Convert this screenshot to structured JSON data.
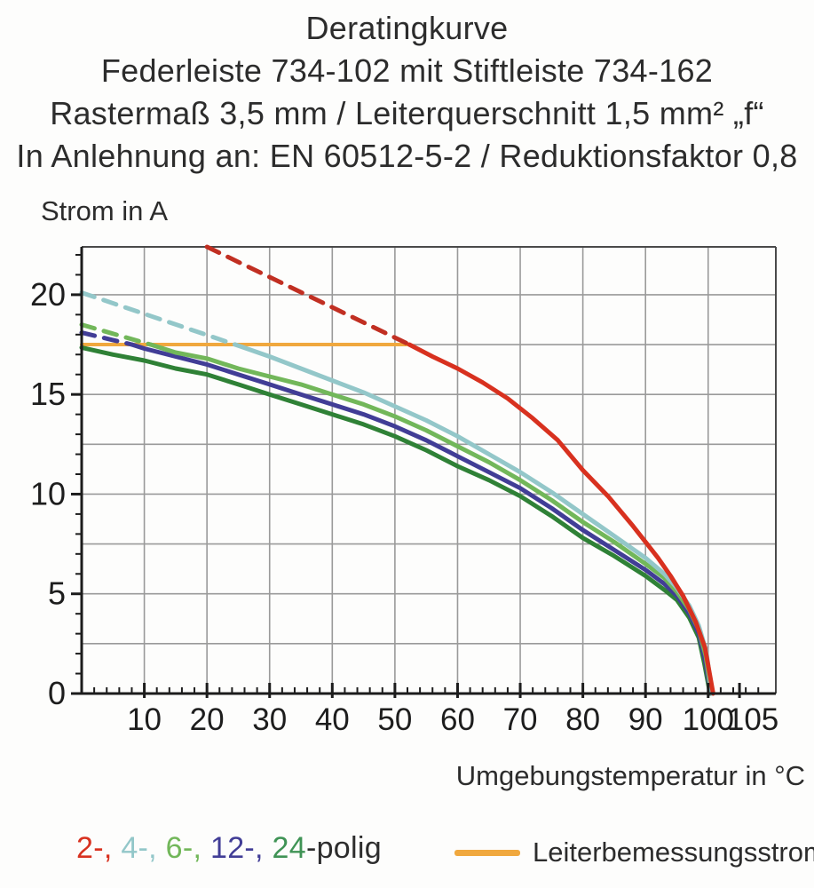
{
  "title": {
    "line1": "Deratingkurve",
    "line2": "Federleiste 734-102 mit Stiftleiste 734-162",
    "line3": "Rastermaß 3,5 mm / Leiterquerschnitt 1,5 mm² „f“",
    "line4": "In Anlehnung an: EN 60512-5-2 / Reduktionsfaktor 0,8"
  },
  "chart_data": {
    "type": "line",
    "title": "Deratingkurve",
    "xlabel": "Umgebungstemperatur in °C",
    "ylabel": "Strom in A",
    "xlim": [
      0,
      110.8
    ],
    "ylim": [
      0,
      22.4
    ],
    "x_major_ticks": [
      10,
      20,
      30,
      40,
      50,
      60,
      70,
      80,
      90,
      100,
      105
    ],
    "x_minor_step": 2,
    "y_major_ticks": [
      0,
      5,
      10,
      15,
      20
    ],
    "y_minor_step": 1,
    "grid": {
      "x_step": 10,
      "y_step": 2.5,
      "color": "#9a9a9a",
      "on": true
    },
    "axis_color": "#1c1c1c",
    "legend_position": "bottom",
    "series": [
      {
        "name": "Leiterbemessungsstrom",
        "color": "#f0a83e",
        "width": 4,
        "points": [
          [
            0,
            17.5
          ],
          [
            52.3,
            17.5
          ]
        ]
      },
      {
        "name": "24-polig",
        "color": "#2f8136",
        "width": 5,
        "points": [
          [
            0,
            17.35
          ],
          [
            5,
            17.0
          ],
          [
            10,
            16.7
          ],
          [
            15,
            16.3
          ],
          [
            20,
            16.0
          ],
          [
            25,
            15.5
          ],
          [
            30,
            15.0
          ],
          [
            35,
            14.5
          ],
          [
            40,
            14.0
          ],
          [
            45,
            13.5
          ],
          [
            50,
            12.9
          ],
          [
            55,
            12.2
          ],
          [
            60,
            11.4
          ],
          [
            65,
            10.7
          ],
          [
            70,
            9.9
          ],
          [
            75,
            8.9
          ],
          [
            80,
            7.8
          ],
          [
            85,
            6.9
          ],
          [
            90,
            5.9
          ],
          [
            93,
            5.2
          ],
          [
            95,
            4.7
          ],
          [
            97,
            3.8
          ],
          [
            98.5,
            2.8
          ],
          [
            99.4,
            1.5
          ],
          [
            100.3,
            0
          ]
        ]
      },
      {
        "name": "12-polig",
        "color": "#413d96",
        "width": 5,
        "dashed_points": [
          [
            0,
            18.1
          ],
          [
            8,
            17.5
          ]
        ],
        "points": [
          [
            8,
            17.5
          ],
          [
            10,
            17.3
          ],
          [
            15,
            16.9
          ],
          [
            20,
            16.5
          ],
          [
            25,
            16.0
          ],
          [
            30,
            15.5
          ],
          [
            35,
            15.0
          ],
          [
            40,
            14.5
          ],
          [
            45,
            14.0
          ],
          [
            50,
            13.4
          ],
          [
            55,
            12.7
          ],
          [
            60,
            11.9
          ],
          [
            65,
            11.1
          ],
          [
            70,
            10.3
          ],
          [
            75,
            9.3
          ],
          [
            80,
            8.2
          ],
          [
            85,
            7.2
          ],
          [
            90,
            6.2
          ],
          [
            93,
            5.5
          ],
          [
            95,
            4.9
          ],
          [
            97,
            4.0
          ],
          [
            98.5,
            3.0
          ],
          [
            99.5,
            1.7
          ],
          [
            100.4,
            0
          ]
        ]
      },
      {
        "name": "6-polig",
        "color": "#72b75a",
        "width": 5,
        "dashed_points": [
          [
            0,
            18.5
          ],
          [
            11,
            17.5
          ]
        ],
        "points": [
          [
            11,
            17.5
          ],
          [
            15,
            17.1
          ],
          [
            20,
            16.8
          ],
          [
            25,
            16.3
          ],
          [
            30,
            15.9
          ],
          [
            35,
            15.5
          ],
          [
            40,
            15.0
          ],
          [
            45,
            14.5
          ],
          [
            50,
            13.9
          ],
          [
            55,
            13.2
          ],
          [
            60,
            12.4
          ],
          [
            65,
            11.6
          ],
          [
            70,
            10.7
          ],
          [
            75,
            9.7
          ],
          [
            80,
            8.6
          ],
          [
            85,
            7.6
          ],
          [
            90,
            6.5
          ],
          [
            93,
            5.8
          ],
          [
            95,
            5.1
          ],
          [
            97,
            4.2
          ],
          [
            98.5,
            3.2
          ],
          [
            99.6,
            1.9
          ],
          [
            100.5,
            0
          ]
        ]
      },
      {
        "name": "4-polig",
        "color": "#93c7c9",
        "width": 5,
        "dashed_points": [
          [
            0,
            20.1
          ],
          [
            24.5,
            17.5
          ]
        ],
        "points": [
          [
            24.5,
            17.5
          ],
          [
            30,
            16.9
          ],
          [
            35,
            16.3
          ],
          [
            40,
            15.7
          ],
          [
            45,
            15.1
          ],
          [
            50,
            14.4
          ],
          [
            55,
            13.7
          ],
          [
            60,
            12.9
          ],
          [
            65,
            12.0
          ],
          [
            70,
            11.1
          ],
          [
            75,
            10.1
          ],
          [
            80,
            9.0
          ],
          [
            85,
            7.9
          ],
          [
            90,
            6.8
          ],
          [
            93,
            6.0
          ],
          [
            95,
            5.3
          ],
          [
            97,
            4.4
          ],
          [
            98.5,
            3.4
          ],
          [
            99.7,
            2.1
          ],
          [
            100.6,
            0
          ]
        ]
      },
      {
        "name": "2-polig",
        "color": "#d8311f",
        "dash_color": "#c12f22",
        "width": 5,
        "dashed_points": [
          [
            20,
            22.4
          ],
          [
            52.3,
            17.5
          ]
        ],
        "points": [
          [
            52.3,
            17.5
          ],
          [
            56,
            16.9
          ],
          [
            60,
            16.3
          ],
          [
            64,
            15.6
          ],
          [
            68,
            14.8
          ],
          [
            72,
            13.8
          ],
          [
            76,
            12.7
          ],
          [
            80,
            11.2
          ],
          [
            84,
            9.9
          ],
          [
            88,
            8.4
          ],
          [
            90,
            7.6
          ],
          [
            92,
            6.8
          ],
          [
            94,
            5.9
          ],
          [
            96,
            4.9
          ],
          [
            98,
            3.6
          ],
          [
            99.5,
            2.3
          ],
          [
            100.8,
            0
          ]
        ]
      }
    ]
  },
  "legend": {
    "poles": {
      "items": [
        {
          "label": "2-, ",
          "color": "#d8311f"
        },
        {
          "label": "4-, ",
          "color": "#93c7c9"
        },
        {
          "label": "6-, ",
          "color": "#72b75a"
        },
        {
          "label": "12-, ",
          "color": "#413d96"
        },
        {
          "label": "24",
          "color": "#3f9355"
        }
      ],
      "suffix": {
        "label": "-polig",
        "color": "#2d2d2d"
      }
    },
    "rated": {
      "label": "Leiterbemessungsstrom",
      "swatch_color": "#f0a83e"
    }
  }
}
